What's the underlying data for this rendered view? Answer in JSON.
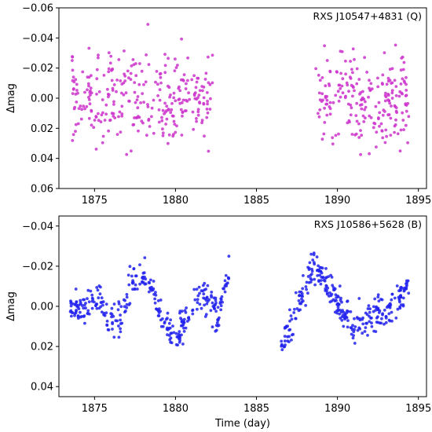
{
  "chart_data": [
    {
      "type": "scatter",
      "title": "RXS J10547+4831 (Q)",
      "xlabel": "",
      "ylabel": "Δmag",
      "xlim": [
        1872.8,
        1895.5
      ],
      "ylim": [
        0.06,
        -0.06
      ],
      "y_inverted": true,
      "xticks": [
        "1875",
        "1880",
        "1885",
        "1890",
        "1895"
      ],
      "yticks": [
        "−0.06",
        "−0.04",
        "−0.02",
        "0.00",
        "0.02",
        "0.04",
        "0.06"
      ],
      "grid": false,
      "series": [
        {
          "color": "#cc33cc",
          "segments": [
            {
              "x_range": [
                1873.6,
                1882.3
              ],
              "mean": 0.0,
              "scatter": 0.016,
              "max_abs": 0.05,
              "points": 300
            },
            {
              "x_range": [
                1888.6,
                1894.4
              ],
              "mean": 0.0,
              "scatter": 0.016,
              "max_abs": 0.045,
              "points": 220
            }
          ]
        }
      ]
    },
    {
      "type": "scatter",
      "title": "RXS J10586+5628 (B)",
      "xlabel": "Time (day)",
      "ylabel": "Δmag",
      "xlim": [
        1872.8,
        1895.5
      ],
      "ylim": [
        0.045,
        -0.045
      ],
      "y_inverted": true,
      "xticks": [
        "1875",
        "1880",
        "1885",
        "1890",
        "1895"
      ],
      "yticks": [
        "−0.04",
        "−0.02",
        "0.00",
        "0.02",
        "0.04"
      ],
      "grid": false,
      "series": [
        {
          "color": "#2222ee",
          "trend": [
            [
              1873.5,
              0.0
            ],
            [
              1874.5,
              0.001
            ],
            [
              1875.3,
              -0.004
            ],
            [
              1875.8,
              0.008
            ],
            [
              1876.5,
              0.008
            ],
            [
              1877.2,
              -0.01
            ],
            [
              1877.8,
              -0.016
            ],
            [
              1878.3,
              -0.014
            ],
            [
              1879.0,
              0.004
            ],
            [
              1879.6,
              0.012
            ],
            [
              1880.2,
              0.013
            ],
            [
              1880.8,
              0.004
            ],
            [
              1881.5,
              -0.004
            ],
            [
              1882.2,
              -0.002
            ],
            [
              1882.6,
              0.006
            ],
            [
              1883.3,
              -0.016
            ],
            [
              1886.5,
              0.02
            ],
            [
              1887.2,
              0.01
            ],
            [
              1888.0,
              -0.01
            ],
            [
              1888.7,
              -0.02
            ],
            [
              1889.2,
              -0.014
            ],
            [
              1889.8,
              -0.004
            ],
            [
              1890.3,
              0.002
            ],
            [
              1891.0,
              0.01
            ],
            [
              1891.6,
              0.008
            ],
            [
              1892.3,
              0.003
            ],
            [
              1893.0,
              0.004
            ],
            [
              1893.6,
              -0.002
            ],
            [
              1894.4,
              -0.01
            ]
          ],
          "segments": [
            {
              "x_range": [
                1873.5,
                1883.3
              ],
              "points": 330,
              "scatter": 0.004
            },
            {
              "x_range": [
                1886.5,
                1894.4
              ],
              "points": 300,
              "scatter": 0.004
            }
          ]
        }
      ]
    }
  ]
}
